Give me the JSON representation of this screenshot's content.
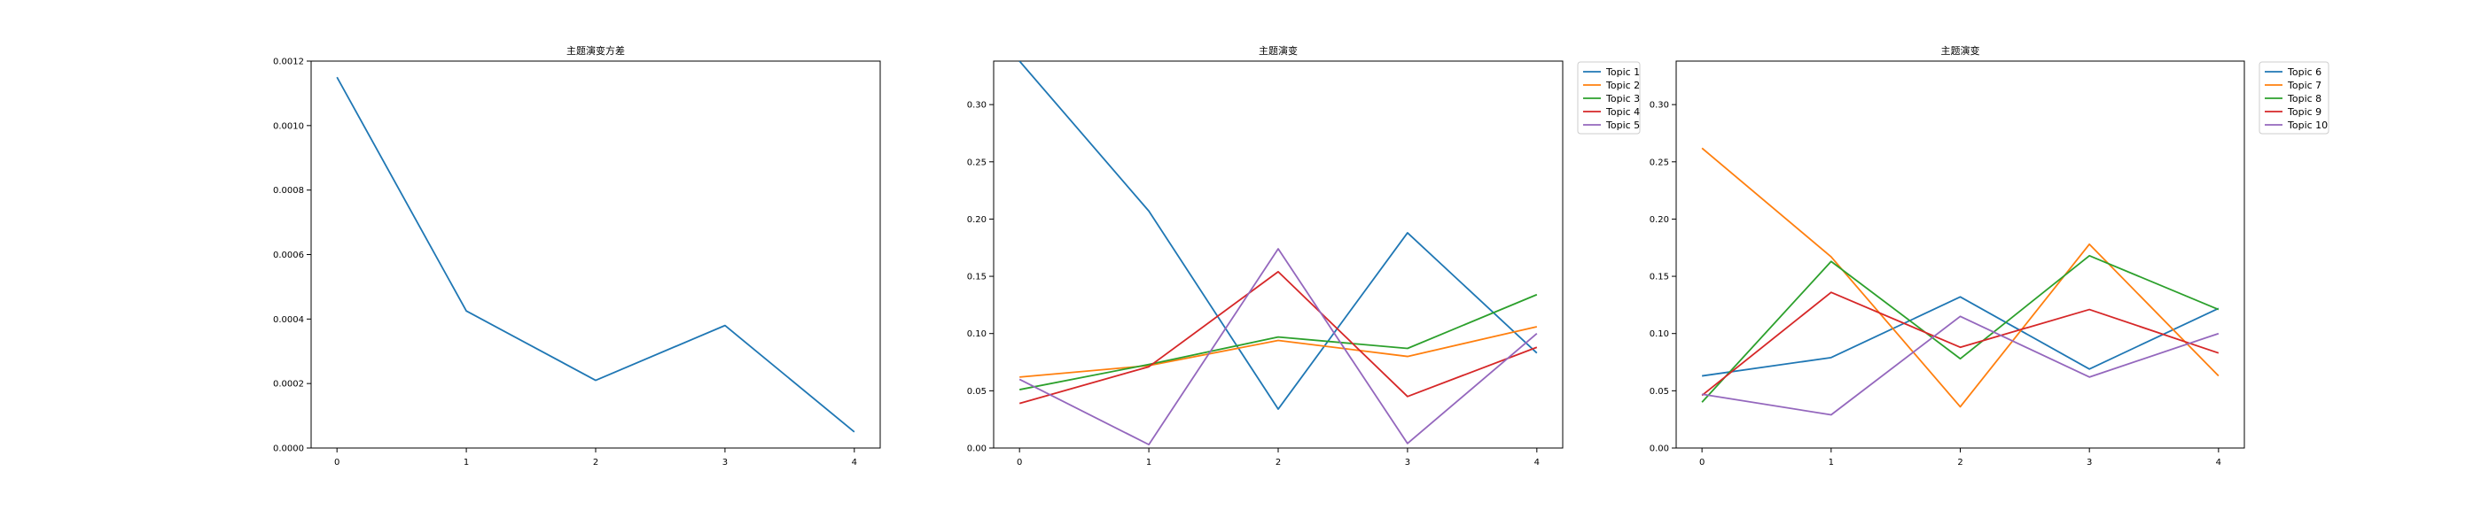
{
  "colors": {
    "tab_blue": "#1f77b4",
    "tab_orange": "#ff7f0e",
    "tab_green": "#2ca02c",
    "tab_red": "#d62728",
    "tab_purple": "#9467bd"
  },
  "chart_data": [
    {
      "type": "line",
      "title": "主题演变方差",
      "xlabel": "",
      "ylabel": "",
      "x": [
        0,
        1,
        2,
        3,
        4
      ],
      "xlim": [
        -0.2,
        4.2
      ],
      "ylim": [
        0,
        0.0012
      ],
      "xticks": [
        "0",
        "1",
        "2",
        "3",
        "4"
      ],
      "yticks": [
        "0.0000",
        "0.0002",
        "0.0004",
        "0.0006",
        "0.0008",
        "0.0010",
        "0.0012"
      ],
      "legend": "none",
      "grid": false,
      "series": [
        {
          "values": [
            0.00115,
            0.000425,
            0.00021,
            0.00038,
            5e-05
          ],
          "color": "#1f77b4"
        }
      ]
    },
    {
      "type": "line",
      "title": "主题演变",
      "xlabel": "",
      "ylabel": "",
      "x": [
        0,
        1,
        2,
        3,
        4
      ],
      "xlim": [
        -0.2,
        4.2
      ],
      "ylim": [
        0,
        0.338
      ],
      "xticks": [
        "0",
        "1",
        "2",
        "3",
        "4"
      ],
      "yticks": [
        "0.00",
        "0.05",
        "0.10",
        "0.15",
        "0.20",
        "0.25",
        "0.30"
      ],
      "legend": "outside-upper-right",
      "grid": false,
      "series": [
        {
          "name": "Topic 1",
          "values": [
            0.338,
            0.207,
            0.034,
            0.188,
            0.083
          ],
          "color": "#1f77b4"
        },
        {
          "name": "Topic 2",
          "values": [
            0.062,
            0.072,
            0.094,
            0.08,
            0.106
          ],
          "color": "#ff7f0e"
        },
        {
          "name": "Topic 3",
          "values": [
            0.051,
            0.073,
            0.097,
            0.087,
            0.134
          ],
          "color": "#2ca02c"
        },
        {
          "name": "Topic 4",
          "values": [
            0.039,
            0.071,
            0.154,
            0.045,
            0.088
          ],
          "color": "#d62728"
        },
        {
          "name": "Topic 5",
          "values": [
            0.06,
            0.003,
            0.174,
            0.004,
            0.1
          ],
          "color": "#9467bd"
        }
      ]
    },
    {
      "type": "line",
      "title": "主题演变",
      "xlabel": "",
      "ylabel": "",
      "x": [
        0,
        1,
        2,
        3,
        4
      ],
      "xlim": [
        -0.2,
        4.2
      ],
      "ylim": [
        0,
        0.338
      ],
      "xticks": [
        "0",
        "1",
        "2",
        "3",
        "4"
      ],
      "yticks": [
        "0.00",
        "0.05",
        "0.10",
        "0.15",
        "0.20",
        "0.25",
        "0.30"
      ],
      "legend": "outside-upper-right",
      "grid": false,
      "series": [
        {
          "name": "Topic 6",
          "values": [
            0.063,
            0.079,
            0.132,
            0.069,
            0.122
          ],
          "color": "#1f77b4"
        },
        {
          "name": "Topic 7",
          "values": [
            0.262,
            0.167,
            0.036,
            0.178,
            0.063
          ],
          "color": "#ff7f0e"
        },
        {
          "name": "Topic 8",
          "values": [
            0.04,
            0.163,
            0.078,
            0.168,
            0.121
          ],
          "color": "#2ca02c"
        },
        {
          "name": "Topic 9",
          "values": [
            0.046,
            0.136,
            0.088,
            0.121,
            0.083
          ],
          "color": "#d62728"
        },
        {
          "name": "Topic 10",
          "values": [
            0.047,
            0.029,
            0.115,
            0.062,
            0.1
          ],
          "color": "#9467bd"
        }
      ]
    }
  ]
}
